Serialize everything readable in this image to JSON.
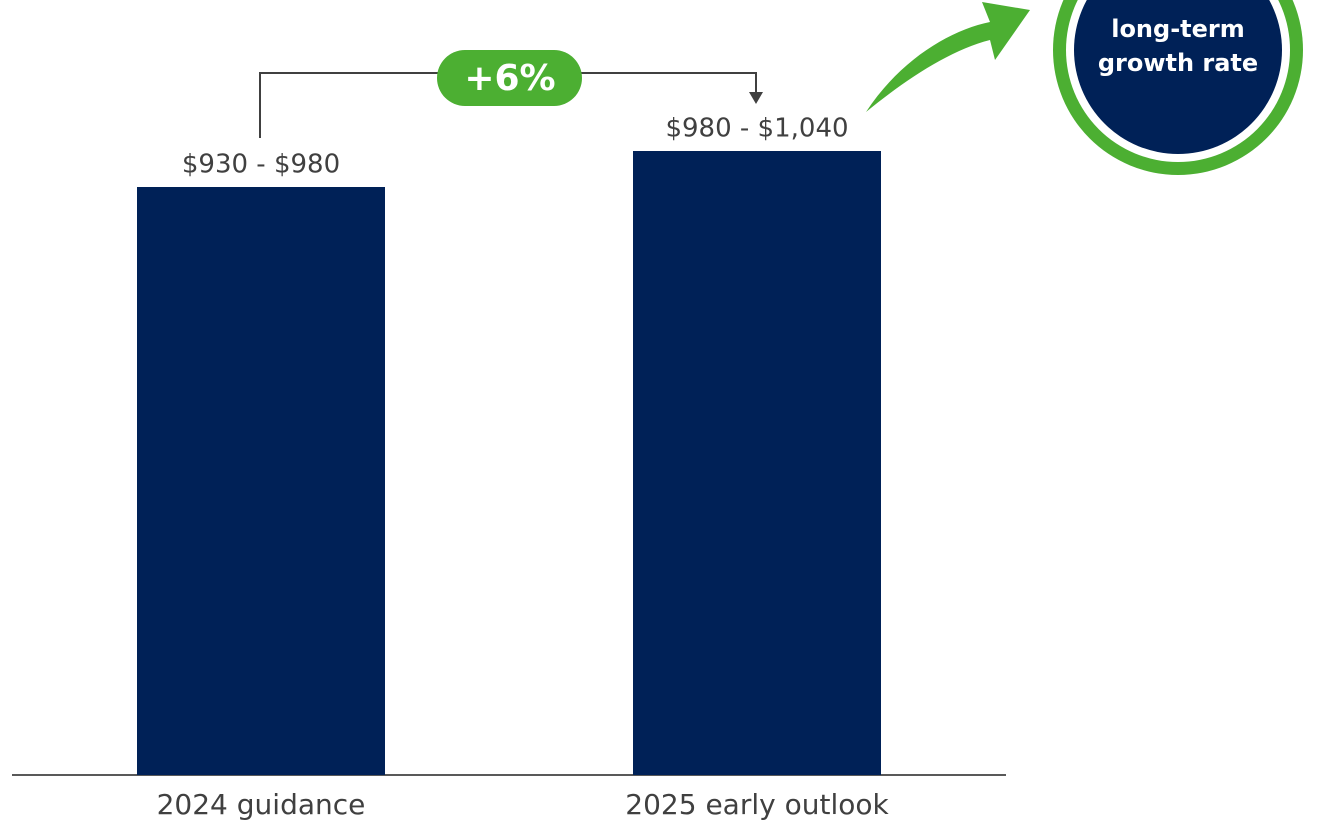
{
  "chart_data": {
    "type": "bar",
    "categories": [
      "2024 guidance",
      "2025 early outlook"
    ],
    "values": [
      980,
      1040
    ],
    "value_labels": [
      "$930 - $980",
      "$980 - $1,040"
    ],
    "color": "#002157",
    "annotation": "+6%",
    "badge": [
      "long-term",
      "growth rate"
    ]
  }
}
